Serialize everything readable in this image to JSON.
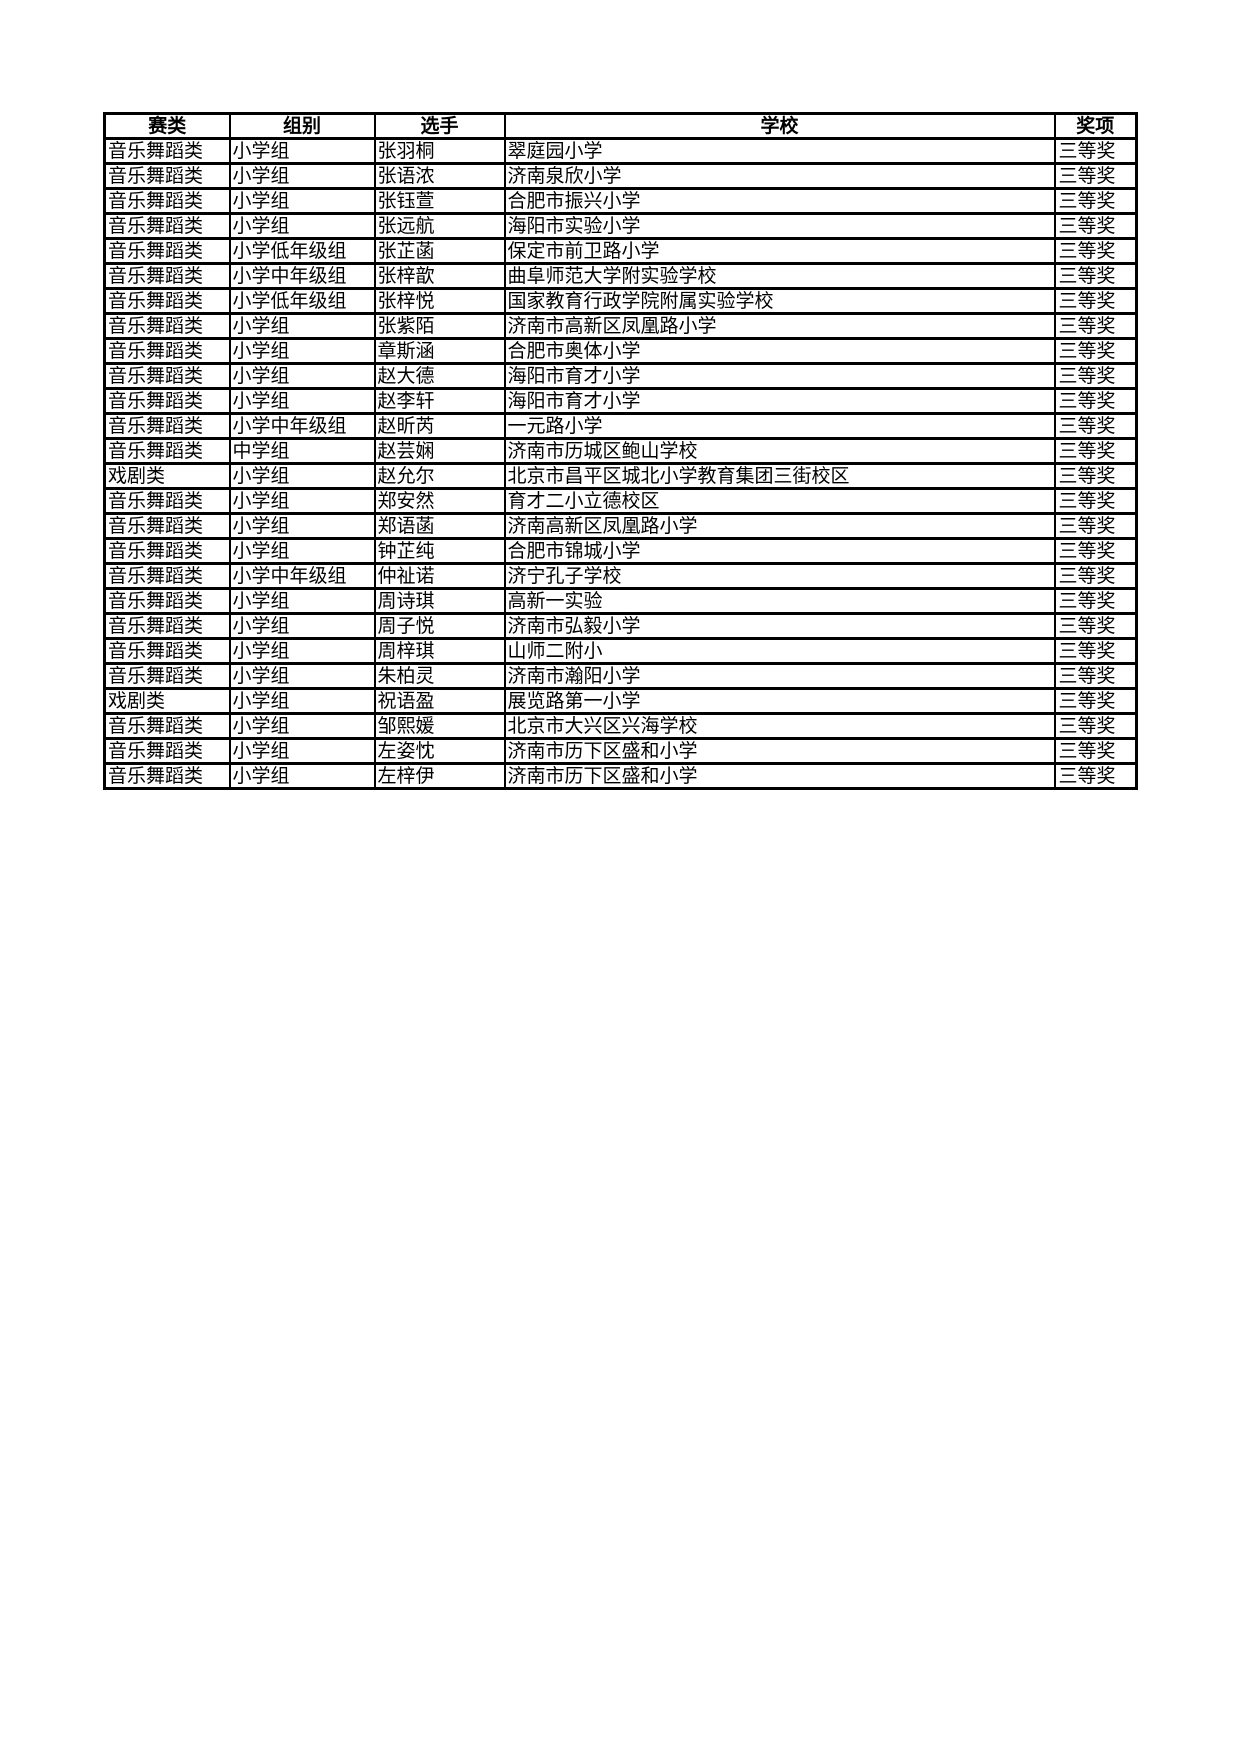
{
  "table": {
    "headers": [
      "赛类",
      "组别",
      "选手",
      "学校",
      "奖项"
    ],
    "rows": [
      [
        "音乐舞蹈类",
        "小学组",
        "张羽桐",
        "翠庭园小学",
        "三等奖"
      ],
      [
        "音乐舞蹈类",
        "小学组",
        "张语浓",
        "济南泉欣小学",
        "三等奖"
      ],
      [
        "音乐舞蹈类",
        "小学组",
        "张钰萱",
        "合肥市振兴小学",
        "三等奖"
      ],
      [
        "音乐舞蹈类",
        "小学组",
        "张远航",
        "海阳市实验小学",
        "三等奖"
      ],
      [
        "音乐舞蹈类",
        "小学低年级组",
        "张芷菡",
        "保定市前卫路小学",
        "三等奖"
      ],
      [
        "音乐舞蹈类",
        "小学中年级组",
        "张梓歆",
        "曲阜师范大学附实验学校",
        "三等奖"
      ],
      [
        "音乐舞蹈类",
        "小学低年级组",
        "张梓悦",
        "国家教育行政学院附属实验学校",
        "三等奖"
      ],
      [
        "音乐舞蹈类",
        "小学组",
        "张紫陌",
        "济南市高新区凤凰路小学",
        "三等奖"
      ],
      [
        "音乐舞蹈类",
        "小学组",
        "章斯涵",
        "合肥市奥体小学",
        "三等奖"
      ],
      [
        "音乐舞蹈类",
        "小学组",
        "赵大德",
        "海阳市育才小学",
        "三等奖"
      ],
      [
        "音乐舞蹈类",
        "小学组",
        "赵李轩",
        "海阳市育才小学",
        "三等奖"
      ],
      [
        "音乐舞蹈类",
        "小学中年级组",
        "赵昕芮",
        "一元路小学",
        "三等奖"
      ],
      [
        "音乐舞蹈类",
        "中学组",
        "赵芸娴",
        "济南市历城区鲍山学校",
        "三等奖"
      ],
      [
        "戏剧类",
        "小学组",
        "赵允尔",
        "北京市昌平区城北小学教育集团三街校区",
        "三等奖"
      ],
      [
        "音乐舞蹈类",
        "小学组",
        "郑安然",
        "育才二小立德校区",
        "三等奖"
      ],
      [
        "音乐舞蹈类",
        "小学组",
        "郑语菡",
        "济南高新区凤凰路小学",
        "三等奖"
      ],
      [
        "音乐舞蹈类",
        "小学组",
        "钟芷纯",
        "合肥市锦城小学",
        "三等奖"
      ],
      [
        "音乐舞蹈类",
        "小学中年级组",
        "仲祉诺",
        "济宁孔子学校",
        "三等奖"
      ],
      [
        "音乐舞蹈类",
        "小学组",
        "周诗琪",
        "高新一实验",
        "三等奖"
      ],
      [
        "音乐舞蹈类",
        "小学组",
        "周子悦",
        "济南市弘毅小学",
        "三等奖"
      ],
      [
        "音乐舞蹈类",
        "小学组",
        "周梓琪",
        "山师二附小",
        "三等奖"
      ],
      [
        "音乐舞蹈类",
        "小学组",
        "朱柏灵",
        "济南市瀚阳小学",
        "三等奖"
      ],
      [
        "戏剧类",
        "小学组",
        "祝语盈",
        "展览路第一小学",
        "三等奖"
      ],
      [
        "音乐舞蹈类",
        "小学组",
        "邹熙媛",
        "北京市大兴区兴海学校",
        "三等奖"
      ],
      [
        "音乐舞蹈类",
        "小学组",
        "左姿忱",
        "济南市历下区盛和小学",
        "三等奖"
      ],
      [
        "音乐舞蹈类",
        "小学组",
        "左梓伊",
        "济南市历下区盛和小学",
        "三等奖"
      ]
    ]
  }
}
